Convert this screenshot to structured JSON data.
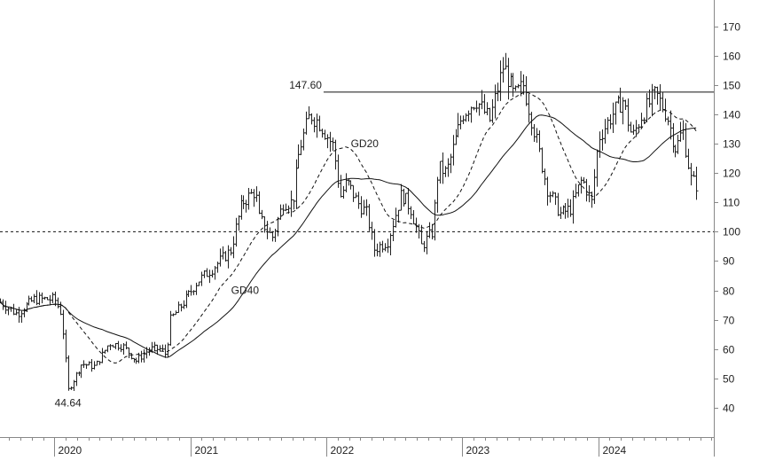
{
  "chart_data": {
    "type": "ohlc",
    "title": "",
    "xlabel": "",
    "ylabel": "",
    "x_tick_labels": [
      "2020",
      "2021",
      "2022",
      "2023",
      "2024"
    ],
    "x_range": [
      2019.6,
      2024.85
    ],
    "y_ticks": [
      40,
      50,
      60,
      70,
      80,
      90,
      100,
      110,
      120,
      130,
      140,
      150,
      160,
      170
    ],
    "y_range": [
      30,
      179
    ],
    "y_axis_side": "right",
    "grid": false,
    "reference_lines": [
      {
        "value": 147.6,
        "style": "solid",
        "start": 2021.98
      },
      {
        "value": 100,
        "style": "dotted"
      }
    ],
    "annotations": [
      {
        "text": "147.60",
        "x": 2021.98,
        "y": 147.6
      },
      {
        "text": "44.64",
        "x": 2020.1,
        "y": 44.64
      },
      {
        "text": "GD20",
        "x": 2022.18,
        "y": 130
      },
      {
        "text": "GD40",
        "x": 2021.3,
        "y": 80
      }
    ],
    "price_anchors": [
      [
        2019.6,
        76
      ],
      [
        2019.72,
        72
      ],
      [
        2019.85,
        77
      ],
      [
        2020.0,
        77
      ],
      [
        2020.05,
        72
      ],
      [
        2020.1,
        46
      ],
      [
        2020.2,
        55
      ],
      [
        2020.3,
        54
      ],
      [
        2020.4,
        62
      ],
      [
        2020.5,
        61
      ],
      [
        2020.6,
        56
      ],
      [
        2020.7,
        60
      ],
      [
        2020.78,
        60
      ],
      [
        2020.82,
        58
      ],
      [
        2020.85,
        70
      ],
      [
        2020.95,
        76
      ],
      [
        2021.05,
        83
      ],
      [
        2021.15,
        87
      ],
      [
        2021.3,
        94
      ],
      [
        2021.32,
        99
      ],
      [
        2021.38,
        110
      ],
      [
        2021.48,
        114
      ],
      [
        2021.5,
        105
      ],
      [
        2021.6,
        98
      ],
      [
        2021.68,
        110
      ],
      [
        2021.75,
        110
      ],
      [
        2021.8,
        128
      ],
      [
        2021.88,
        140
      ],
      [
        2021.95,
        137
      ],
      [
        2022.05,
        129
      ],
      [
        2022.1,
        112
      ],
      [
        2022.15,
        117
      ],
      [
        2022.23,
        110
      ],
      [
        2022.3,
        106
      ],
      [
        2022.35,
        94
      ],
      [
        2022.45,
        97
      ],
      [
        2022.55,
        113
      ],
      [
        2022.62,
        108
      ],
      [
        2022.7,
        95
      ],
      [
        2022.78,
        100
      ],
      [
        2022.82,
        122
      ],
      [
        2022.88,
        120
      ],
      [
        2023.0,
        140
      ],
      [
        2023.1,
        145
      ],
      [
        2023.2,
        138
      ],
      [
        2023.3,
        157
      ],
      [
        2023.38,
        146
      ],
      [
        2023.45,
        150
      ],
      [
        2023.55,
        130
      ],
      [
        2023.62,
        115
      ],
      [
        2023.72,
        106
      ],
      [
        2023.8,
        108
      ],
      [
        2023.88,
        118
      ],
      [
        2023.95,
        110
      ],
      [
        2024.0,
        132
      ],
      [
        2024.1,
        140
      ],
      [
        2024.18,
        145
      ],
      [
        2024.25,
        132
      ],
      [
        2024.32,
        140
      ],
      [
        2024.42,
        147
      ],
      [
        2024.5,
        140
      ],
      [
        2024.57,
        128
      ],
      [
        2024.62,
        135
      ],
      [
        2024.68,
        118
      ],
      [
        2024.72,
        116
      ]
    ],
    "series": [
      {
        "name": "",
        "style": "ohlc-bars"
      },
      {
        "name": "GD20",
        "style": "dashed",
        "window": 20
      },
      {
        "name": "GD40",
        "style": "solid",
        "window": 40
      }
    ],
    "colors": {
      "bars": "#222222",
      "lines": "#111111",
      "axis": "#888888"
    }
  }
}
